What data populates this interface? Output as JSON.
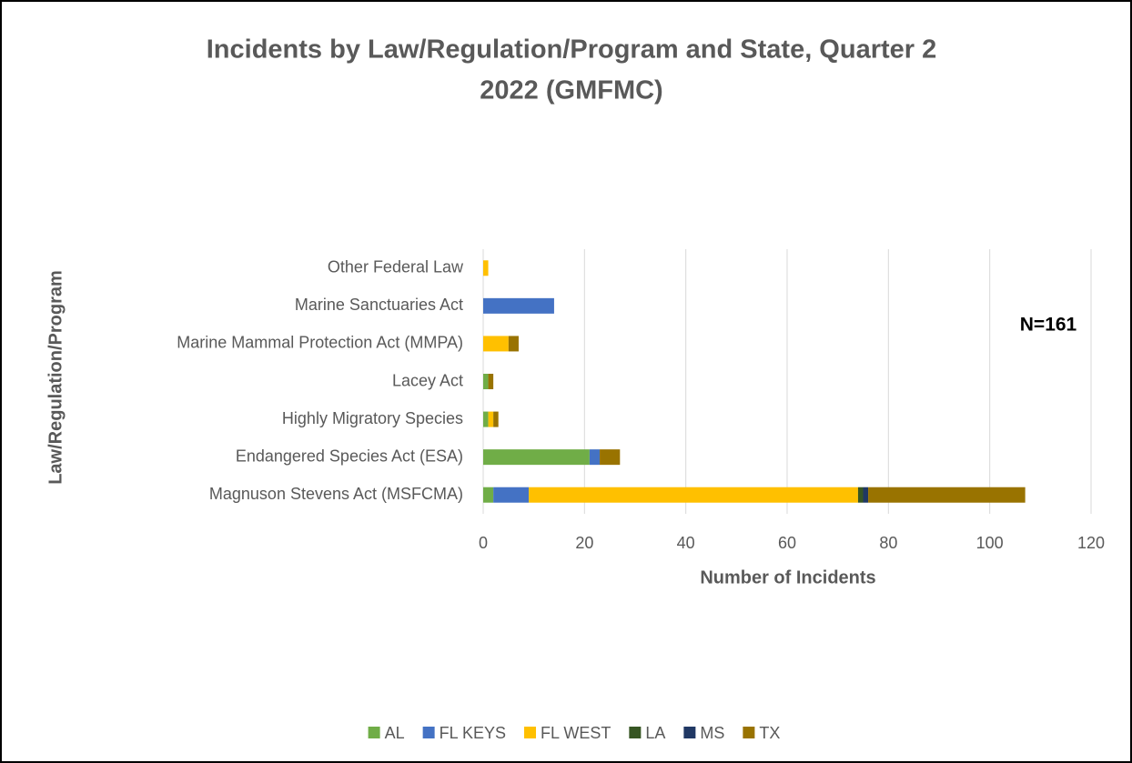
{
  "chart_data": {
    "type": "bar",
    "orientation": "horizontal",
    "stacked": true,
    "title": [
      "Incidents by Law/Regulation/Program and State, Quarter 2",
      "2022 (GMFMC)"
    ],
    "xlabel": "Number of Incidents",
    "ylabel": "Law/Regulation/Program",
    "annotation": "N=161",
    "categories": [
      "Magnuson Stevens Act (MSFCMA)",
      "Endangered Species Act (ESA)",
      "Highly Migratory Species",
      "Lacey Act",
      "Marine Mammal Protection Act (MMPA)",
      "Marine Sanctuaries Act",
      "Other Federal Law"
    ],
    "series": [
      {
        "name": "AL",
        "color": "#70ad47",
        "values": [
          2,
          21,
          1,
          1,
          0,
          0,
          0
        ]
      },
      {
        "name": "FL KEYS",
        "color": "#4472c4",
        "values": [
          7,
          2,
          0,
          0,
          0,
          14,
          0
        ]
      },
      {
        "name": "FL WEST",
        "color": "#ffc000",
        "values": [
          65,
          0,
          1,
          0,
          5,
          0,
          1
        ]
      },
      {
        "name": "LA",
        "color": "#375623",
        "values": [
          1,
          0,
          0,
          0,
          0,
          0,
          0
        ]
      },
      {
        "name": "MS",
        "color": "#203864",
        "values": [
          1,
          0,
          0,
          0,
          0,
          0,
          0
        ]
      },
      {
        "name": "TX",
        "color": "#997300",
        "values": [
          31,
          4,
          1,
          1,
          2,
          0,
          0
        ]
      }
    ],
    "xlim": [
      0,
      120
    ],
    "xticks": [
      0,
      20,
      40,
      60,
      80,
      100,
      120
    ],
    "grid": true,
    "legend": "bottom"
  }
}
